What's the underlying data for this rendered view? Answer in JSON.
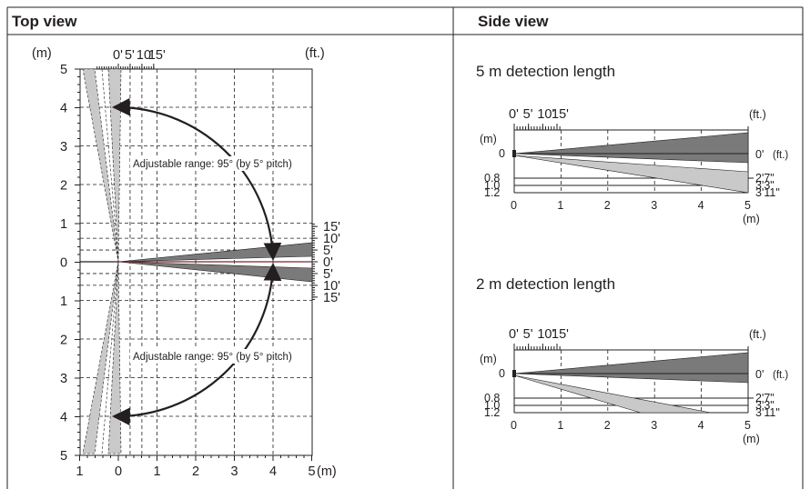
{
  "top_view": {
    "title": "Top view",
    "unit_m": "(m)",
    "unit_ft": "(ft.)",
    "top_ft_ticks": [
      "0'",
      "5'",
      "10'",
      "15'"
    ],
    "left_m_ticks": [
      "5",
      "4",
      "3",
      "2",
      "1",
      "0",
      "1",
      "2",
      "3",
      "4",
      "5"
    ],
    "right_ft_ticks": [
      "15'",
      "10'",
      "5'",
      "0'",
      "5'",
      "10'",
      "15'"
    ],
    "bottom_m_ticks": [
      "1",
      "0",
      "1",
      "2",
      "3",
      "4",
      "5"
    ],
    "note_upper": "Adjustable range: 95° (by 5° pitch)",
    "note_lower": "Adjustable range: 95° (by 5° pitch)"
  },
  "side_view": {
    "title": "Side view",
    "panels": [
      {
        "heading": "5 m detection length",
        "ft_ticks": [
          "0'",
          "5'",
          "10'",
          "15'"
        ],
        "ft_unit": "(ft.)",
        "m_unit": "(m)",
        "left_ticks": [
          "0",
          "0.8",
          "1.0",
          "1.2"
        ],
        "right_labels": [
          "0'",
          "2'7\"",
          "3'3\"",
          "3'11\""
        ],
        "right_unit": "(ft.)",
        "bottom_ticks": [
          "0",
          "1",
          "2",
          "3",
          "4",
          "5"
        ],
        "bottom_unit": "(m)"
      },
      {
        "heading": "2 m detection length",
        "ft_ticks": [
          "0'",
          "5'",
          "10'",
          "15'"
        ],
        "ft_unit": "(ft.)",
        "m_unit": "(m)",
        "left_ticks": [
          "0",
          "0.8",
          "1.0",
          "1.2"
        ],
        "right_labels": [
          "0'",
          "2'7\"",
          "3'3\"",
          "3'11\""
        ],
        "right_unit": "(ft.)",
        "bottom_ticks": [
          "0",
          "1",
          "2",
          "3",
          "4",
          "5"
        ],
        "bottom_unit": "(m)"
      }
    ]
  },
  "colors": {
    "dark_beam": "#7a7a7a",
    "light_beam": "#c9c9c9",
    "line": "#231f20",
    "center_line": "#b03030"
  }
}
